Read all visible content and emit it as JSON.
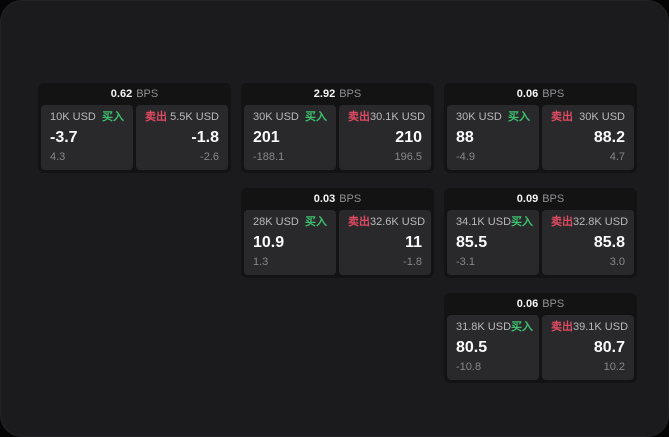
{
  "labels": {
    "buy": "买入",
    "sell": "卖出",
    "bps_unit": "BPS"
  },
  "colors": {
    "buy_green": "#3cc06e",
    "sell_red": "#dd4a62",
    "panel_bg": "#29292b",
    "card_bg": "#131314",
    "page_bg": "#1b1b1d",
    "amount_gray": "#b9b9bb",
    "delta_gray": "#87878a",
    "unit_gray": "#909093"
  },
  "cards": [
    {
      "row": 1,
      "col": 1,
      "bps": "0.62",
      "buy": {
        "amount": "10K USD",
        "price": "-3.7",
        "delta": "4.3"
      },
      "sell": {
        "amount": "5.5K USD",
        "price": "-1.8",
        "delta": "-2.6"
      }
    },
    {
      "row": 1,
      "col": 2,
      "bps": "2.92",
      "buy": {
        "amount": "30K USD",
        "price": "201",
        "delta": "-188.1"
      },
      "sell": {
        "amount": "30.1K USD",
        "price": "210",
        "delta": "196.5"
      }
    },
    {
      "row": 1,
      "col": 3,
      "bps": "0.06",
      "buy": {
        "amount": "30K USD",
        "price": "88",
        "delta": "-4.9"
      },
      "sell": {
        "amount": "30K USD",
        "price": "88.2",
        "delta": "4.7"
      }
    },
    {
      "row": 2,
      "col": 2,
      "bps": "0.03",
      "buy": {
        "amount": "28K USD",
        "price": "10.9",
        "delta": "1.3"
      },
      "sell": {
        "amount": "32.6K USD",
        "price": "11",
        "delta": "-1.8"
      }
    },
    {
      "row": 2,
      "col": 3,
      "bps": "0.09",
      "buy": {
        "amount": "34.1K USD",
        "price": "85.5",
        "delta": "-3.1"
      },
      "sell": {
        "amount": "32.8K USD",
        "price": "85.8",
        "delta": "3.0"
      }
    },
    {
      "row": 3,
      "col": 3,
      "bps": "0.06",
      "buy": {
        "amount": "31.8K USD",
        "price": "80.5",
        "delta": "-10.8"
      },
      "sell": {
        "amount": "39.1K USD",
        "price": "80.7",
        "delta": "10.2"
      }
    }
  ]
}
